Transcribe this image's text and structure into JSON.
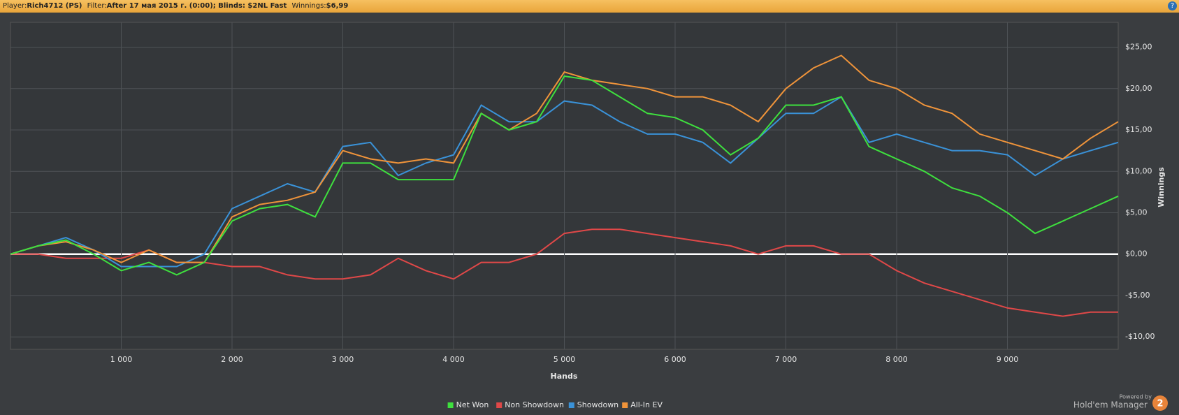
{
  "header": {
    "player_label": "Player:",
    "player": "Rich4712 (PS)",
    "filter_label": "Filter:",
    "filter": "After 17 мая 2015 г. (0:00); Blinds: $2NL Fast",
    "winnings_label": "Winnings:",
    "winnings": "$6,99"
  },
  "brand": {
    "powered": "Powered by",
    "name": "Hold'em Manager",
    "version": "2"
  },
  "chart_data": {
    "type": "line",
    "xlabel": "Hands",
    "ylabel": "Winnings",
    "x": [
      0,
      250,
      500,
      750,
      1000,
      1250,
      1500,
      1750,
      2000,
      2250,
      2500,
      2750,
      3000,
      3250,
      3500,
      3750,
      4000,
      4250,
      4500,
      4750,
      5000,
      5250,
      5500,
      5750,
      6000,
      6250,
      6500,
      6750,
      7000,
      7250,
      7500,
      7750,
      8000,
      8250,
      8500,
      8750,
      9000,
      9250,
      9500,
      9750,
      10000
    ],
    "series": [
      {
        "name": "Net Won",
        "color": "#3ee03e",
        "values": [
          0,
          1,
          1.7,
          0,
          -2,
          -1,
          -2.5,
          -1,
          4,
          5.5,
          6,
          4.5,
          11,
          11,
          9,
          9,
          9,
          17,
          15,
          16,
          21.5,
          21,
          19,
          17,
          16.5,
          15,
          12,
          14,
          18,
          18,
          19,
          13,
          11.5,
          10,
          8,
          7,
          5,
          2.5,
          4,
          5.5,
          7
        ]
      },
      {
        "name": "Non Showdown",
        "color": "#e04848",
        "values": [
          0,
          0,
          -0.5,
          -0.5,
          -0.5,
          0.5,
          -1,
          -1,
          -1.5,
          -1.5,
          -2.5,
          -3,
          -3,
          -2.5,
          -0.5,
          -2,
          -3,
          -1,
          -1,
          0,
          2.5,
          3,
          3,
          2.5,
          2,
          1.5,
          1,
          0,
          1,
          1,
          0,
          0,
          -2,
          -3.5,
          -4.5,
          -5.5,
          -6.5,
          -7,
          -7.5,
          -7,
          -7
        ]
      },
      {
        "name": "Showdown",
        "color": "#3a92d8",
        "values": [
          0,
          1,
          2,
          0.5,
          -1.5,
          -1.5,
          -1.5,
          0,
          5.5,
          7,
          8.5,
          7.5,
          13,
          13.5,
          9.5,
          11,
          12,
          18,
          16,
          16,
          18.5,
          18,
          16,
          14.5,
          14.5,
          13.5,
          11,
          14,
          17,
          17,
          19,
          13.5,
          14.5,
          13.5,
          12.5,
          12.5,
          12,
          9.5,
          11.5,
          12.5,
          13.5
        ]
      },
      {
        "name": "All-In EV",
        "color": "#f0943a",
        "values": [
          0,
          1,
          1.5,
          0.5,
          -1,
          0.5,
          -1,
          -1,
          4.5,
          6,
          6.5,
          7.5,
          12.5,
          11.5,
          11,
          11.5,
          11,
          17,
          15,
          17,
          22,
          21,
          20.5,
          20,
          19,
          19,
          18,
          16,
          20,
          22.5,
          24,
          21,
          20,
          18,
          17,
          14.5,
          13.5,
          12.5,
          11.5,
          14,
          16
        ]
      }
    ],
    "xlim": [
      0,
      10000
    ],
    "xticks": [
      {
        "value": 1000,
        "label": "1 000"
      },
      {
        "value": 2000,
        "label": "2 000"
      },
      {
        "value": 3000,
        "label": "3 000"
      },
      {
        "value": 4000,
        "label": "4 000"
      },
      {
        "value": 5000,
        "label": "5 000"
      },
      {
        "value": 6000,
        "label": "6 000"
      },
      {
        "value": 7000,
        "label": "7 000"
      },
      {
        "value": 8000,
        "label": "8 000"
      },
      {
        "value": 9000,
        "label": "9 000"
      }
    ],
    "ylim": [
      -11.5,
      28
    ],
    "yticks": [
      {
        "value": -10,
        "label": "-$10,00"
      },
      {
        "value": -5,
        "label": "-$5,00"
      },
      {
        "value": 0,
        "label": "$0,00"
      },
      {
        "value": 5,
        "label": "$5,00"
      },
      {
        "value": 10,
        "label": "$10,00"
      },
      {
        "value": 15,
        "label": "$15,00"
      },
      {
        "value": 20,
        "label": "$20,00"
      },
      {
        "value": 25,
        "label": "$25,00"
      }
    ],
    "grid": true,
    "legend": "bottom"
  }
}
